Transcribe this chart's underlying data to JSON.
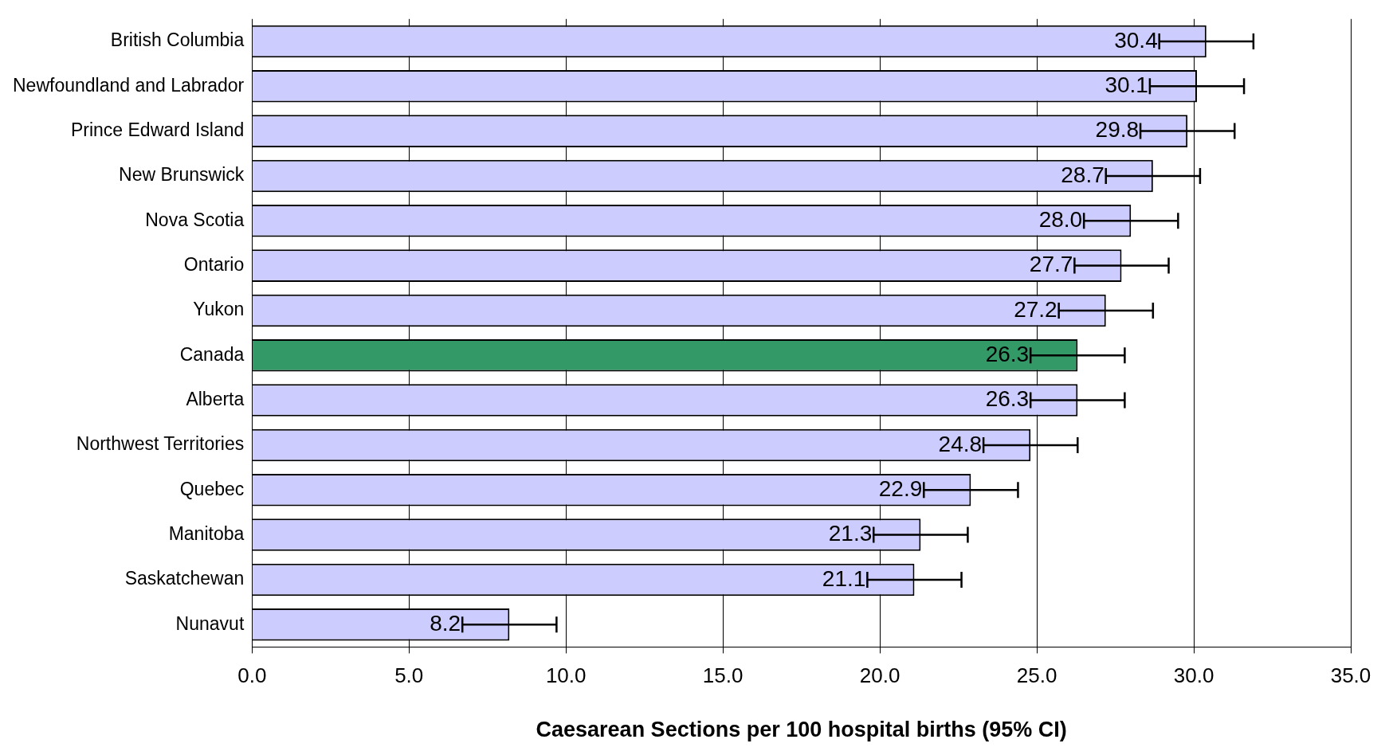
{
  "chart_data": {
    "type": "bar",
    "orientation": "horizontal",
    "xlabel": "Caesarean Sections per 100 hospital births (95% CI)",
    "categories": [
      "British Columbia",
      "Newfoundland and Labrador",
      "Prince Edward Island",
      "New Brunswick",
      "Nova Scotia",
      "Ontario",
      "Yukon",
      "Canada",
      "Alberta",
      "Northwest Territories",
      "Quebec",
      "Manitoba",
      "Saskatchewan",
      "Nunavut"
    ],
    "values": [
      30.4,
      30.1,
      29.8,
      28.7,
      28.0,
      27.7,
      27.2,
      26.3,
      26.3,
      24.8,
      22.9,
      21.3,
      21.1,
      8.2
    ],
    "colors": [
      "#ccccff",
      "#ccccff",
      "#ccccff",
      "#ccccff",
      "#ccccff",
      "#ccccff",
      "#ccccff",
      "#339966",
      "#ccccff",
      "#ccccff",
      "#ccccff",
      "#ccccff",
      "#ccccff",
      "#ccccff"
    ],
    "errors": [
      1.5,
      1.5,
      1.5,
      1.5,
      1.5,
      1.5,
      1.5,
      1.5,
      1.5,
      1.5,
      1.5,
      1.5,
      1.5,
      1.5
    ],
    "value_labels": [
      "30.4",
      "30.1",
      "29.8",
      "28.7",
      "28.0",
      "27.7",
      "27.2",
      "26.3",
      "26.3",
      "24.8",
      "22.9",
      "21.3",
      "21.1",
      "8.2"
    ],
    "xlim": [
      0,
      35
    ],
    "xticks": [
      {
        "value": 0,
        "label": "0.0"
      },
      {
        "value": 5,
        "label": "5.0"
      },
      {
        "value": 10,
        "label": "10.0"
      },
      {
        "value": 15,
        "label": "15.0"
      },
      {
        "value": 20,
        "label": "20.0"
      },
      {
        "value": 25,
        "label": "25.0"
      },
      {
        "value": 30,
        "label": "30.0"
      },
      {
        "value": 35,
        "label": "35.0"
      }
    ],
    "grid": "x",
    "legend": false
  }
}
